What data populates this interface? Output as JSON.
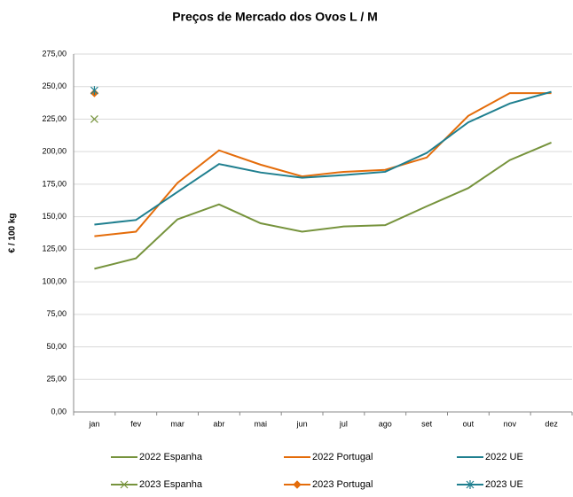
{
  "chart_data": {
    "type": "line",
    "title": "Preços de Mercado dos Ovos L / M",
    "y_label": "€ / 100 kg",
    "categories": [
      "jan",
      "fev",
      "mar",
      "abr",
      "mai",
      "jun",
      "jul",
      "ago",
      "set",
      "out",
      "nov",
      "dez"
    ],
    "ylim": [
      0,
      275
    ],
    "yticks": [
      {
        "value": 0,
        "label": "0,00"
      },
      {
        "value": 25,
        "label": "25,00"
      },
      {
        "value": 50,
        "label": "50,00"
      },
      {
        "value": 75,
        "label": "75,00"
      },
      {
        "value": 100,
        "label": "100,00"
      },
      {
        "value": 125,
        "label": "125,00"
      },
      {
        "value": 150,
        "label": "150,00"
      },
      {
        "value": 175,
        "label": "175,00"
      },
      {
        "value": 200,
        "label": "200,00"
      },
      {
        "value": 225,
        "label": "225,00"
      },
      {
        "value": 250,
        "label": "250,00"
      },
      {
        "value": 275,
        "label": "275,00"
      }
    ],
    "grid": true,
    "series": [
      {
        "name": "2022 Espanha",
        "color": "#76933c",
        "marker": "none",
        "values": [
          110,
          118,
          148,
          159.5,
          145,
          138.5,
          142.5,
          143.5,
          158,
          172,
          193.5,
          207
        ]
      },
      {
        "name": "2022 Portugal",
        "color": "#e46c0a",
        "marker": "none",
        "values": [
          135,
          138.5,
          176,
          201,
          190,
          181,
          184.5,
          186,
          195.5,
          227.5,
          245,
          245
        ]
      },
      {
        "name": "2022 UE",
        "color": "#1f7f8f",
        "marker": "none",
        "values": [
          144,
          147.5,
          169,
          190.5,
          184,
          180,
          182,
          184.5,
          199,
          222.5,
          237,
          246
        ]
      },
      {
        "name": "2023 Espanha",
        "color": "#76933c",
        "marker": "x",
        "values": [
          225,
          null,
          null,
          null,
          null,
          null,
          null,
          null,
          null,
          null,
          null,
          null
        ]
      },
      {
        "name": "2023 Portugal",
        "color": "#e46c0a",
        "marker": "diamond",
        "values": [
          245,
          null,
          null,
          null,
          null,
          null,
          null,
          null,
          null,
          null,
          null,
          null
        ]
      },
      {
        "name": "2023 UE",
        "color": "#1f7f8f",
        "marker": "star",
        "values": [
          247,
          null,
          null,
          null,
          null,
          null,
          null,
          null,
          null,
          null,
          null,
          null
        ]
      }
    ]
  }
}
